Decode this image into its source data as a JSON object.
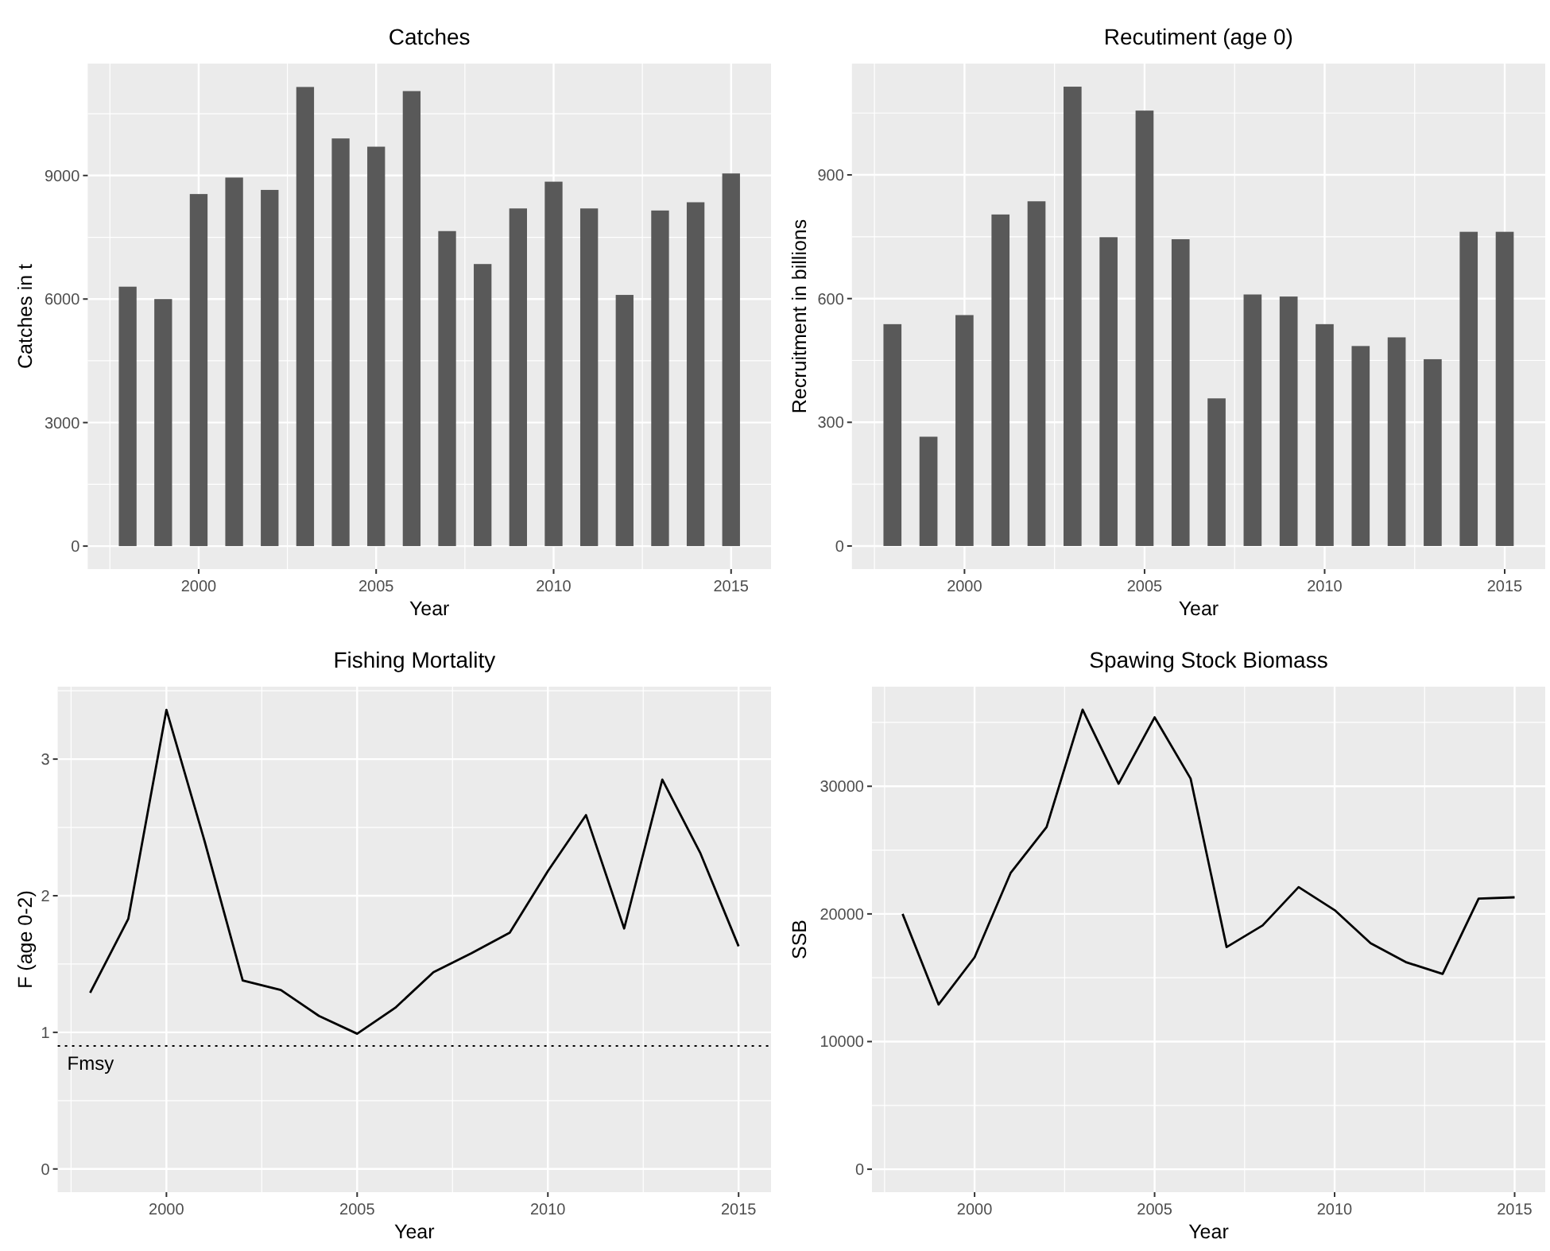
{
  "chart_data": [
    {
      "type": "bar",
      "title": "Catches",
      "xlabel": "Year",
      "ylabel": "Catches in t",
      "x": [
        1998,
        1999,
        2000,
        2001,
        2002,
        2003,
        2004,
        2005,
        2006,
        2007,
        2008,
        2009,
        2010,
        2011,
        2012,
        2013,
        2014,
        2015
      ],
      "color": "#595959",
      "values": [
        6300,
        6000,
        8550,
        8950,
        8650,
        11150,
        9900,
        9700,
        11050,
        7650,
        6850,
        8200,
        8850,
        8200,
        6100,
        8150,
        8350,
        9050
      ],
      "xlim": [
        1996.875,
        2016.125
      ],
      "xticks": [
        2000,
        2005,
        2010,
        2015
      ],
      "ylim": [
        -558,
        11718
      ],
      "yticks": [
        0,
        3000,
        6000,
        9000
      ],
      "grid": true
    },
    {
      "type": "bar",
      "title": "Recutiment (age 0)",
      "xlabel": "Year",
      "ylabel": "Recruitment in billions",
      "x": [
        1998,
        1999,
        2000,
        2001,
        2002,
        2003,
        2004,
        2005,
        2006,
        2007,
        2008,
        2009,
        2010,
        2011,
        2012,
        2013,
        2014,
        2015
      ],
      "color": "#595959",
      "values": [
        538,
        265,
        560,
        804,
        836,
        1114,
        749,
        1056,
        744,
        358,
        610,
        605,
        538,
        485,
        506,
        453,
        762,
        762
      ],
      "xlim": [
        1996.875,
        2016.125
      ],
      "xticks": [
        2000,
        2005,
        2010,
        2015
      ],
      "ylim": [
        -56,
        1170
      ],
      "yticks": [
        0,
        300,
        600,
        900
      ],
      "grid": true
    },
    {
      "type": "line",
      "title": "Fishing Mortality",
      "xlabel": "Year",
      "ylabel": "F (age 0-2)",
      "x": [
        1998,
        1999,
        2000,
        2001,
        2002,
        2003,
        2004,
        2005,
        2006,
        2007,
        2008,
        2009,
        2010,
        2011,
        2012,
        2013,
        2014,
        2015
      ],
      "color": "#000000",
      "values": [
        1.29,
        1.83,
        3.36,
        2.4,
        1.38,
        1.31,
        1.12,
        0.99,
        1.18,
        1.44,
        1.58,
        1.73,
        2.18,
        2.59,
        1.76,
        2.85,
        2.31,
        1.63
      ],
      "xlim": [
        1997.15,
        2015.85
      ],
      "xticks": [
        2000,
        2005,
        2010,
        2015
      ],
      "ylim": [
        -0.17,
        3.53
      ],
      "yticks": [
        0,
        1,
        2,
        3
      ],
      "grid": true,
      "ref_lines": [
        {
          "axis": "y",
          "value": 0.9,
          "label": "Fmsy",
          "line_style": "dotted",
          "color": "#000000"
        }
      ]
    },
    {
      "type": "line",
      "title": "Spawing Stock Biomass",
      "xlabel": "Year",
      "ylabel": "SSB",
      "x": [
        1998,
        1999,
        2000,
        2001,
        2002,
        2003,
        2004,
        2005,
        2006,
        2007,
        2008,
        2009,
        2010,
        2011,
        2012,
        2013,
        2014,
        2015
      ],
      "color": "#000000",
      "values": [
        20000,
        12900,
        16600,
        23200,
        26800,
        36000,
        30200,
        35400,
        30600,
        17400,
        19100,
        22100,
        20300,
        17700,
        16200,
        15300,
        21200,
        21300
      ],
      "xlim": [
        1997.15,
        2015.85
      ],
      "xticks": [
        2000,
        2005,
        2010,
        2015
      ],
      "ylim": [
        -1800,
        37800
      ],
      "yticks": [
        0,
        10000,
        20000,
        30000
      ],
      "grid": true
    }
  ]
}
